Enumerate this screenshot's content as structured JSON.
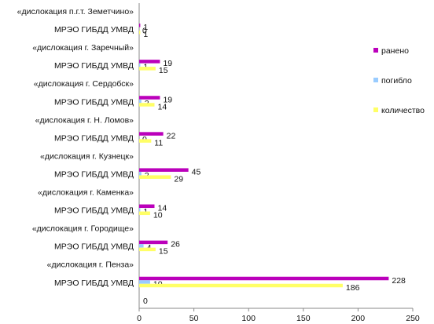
{
  "chart_data": {
    "type": "bar",
    "orientation": "horizontal",
    "categories": [
      "«дислокация п.г.т. Земетчино»",
      "МРЭО ГИБДД УМВД",
      "«дислокация г. Заречный»",
      "МРЭО ГИБДД УМВД",
      "«дислокация г. Сердобск»",
      "МРЭО ГИБДД УМВД",
      "«дислокация г. Н. Ломов»",
      "МРЭО ГИБДД УМВД",
      "«дислокация г. Кузнецк»",
      "МРЭО ГИБДД УМВД",
      "«дислокация г. Каменка»",
      "МРЭО ГИБДД УМВД",
      "«дислокация г. Городище»",
      "МРЭО ГИБДД УМВД",
      "«дислокация г. Пенза»",
      "МРЭО ГИБДД УМВД"
    ],
    "groups": [
      {
        "label_index": 1,
        "values": {
          "ранено": 1,
          "погибло": null,
          "количество": 1
        },
        "labels": {
          "ранено": "1",
          "погибло": "0",
          "количество": "1"
        }
      },
      {
        "label_index": 3,
        "values": {
          "ранено": 19,
          "погибло": 1,
          "количество": 15
        },
        "labels": {
          "ранено": "19",
          "погибло": "1",
          "количество": "15"
        }
      },
      {
        "label_index": 5,
        "values": {
          "ранено": 19,
          "погибло": 2,
          "количество": 14
        },
        "labels": {
          "ранено": "19",
          "погибло": "2",
          "количество": "14"
        }
      },
      {
        "label_index": 7,
        "values": {
          "ранено": 22,
          "погибло": 0,
          "количество": 11
        },
        "labels": {
          "ранено": "22",
          "погибло": "0",
          "количество": "11"
        }
      },
      {
        "label_index": 9,
        "values": {
          "ранено": 45,
          "погибло": 2,
          "количество": 29
        },
        "labels": {
          "ранено": "45",
          "погибло": "2",
          "количество": "29"
        }
      },
      {
        "label_index": 11,
        "values": {
          "ранено": 14,
          "погибло": 1,
          "количество": 10
        },
        "labels": {
          "ранено": "14",
          "погибло": "1",
          "количество": "10"
        }
      },
      {
        "label_index": 13,
        "values": {
          "ранено": 26,
          "погибло": 4,
          "количество": 15
        },
        "labels": {
          "ранено": "26",
          "погибло": "4",
          "количество": "15"
        }
      },
      {
        "label_index": 15,
        "values": {
          "ранено": 228,
          "погибло": 10,
          "количество": 186
        },
        "labels": {
          "ранено": "228",
          "погибло": "10",
          "количество": "186"
        }
      }
    ],
    "extra_label": "0",
    "series": [
      {
        "name": "ранено",
        "color": "#bb00bb"
      },
      {
        "name": "погибло",
        "color": "#99ccff"
      },
      {
        "name": "количество",
        "color": "#ffff66"
      }
    ],
    "xlim": [
      0,
      250
    ],
    "xticks": [
      "0",
      "50",
      "100",
      "150",
      "200",
      "250"
    ],
    "xtick_values": [
      0,
      50,
      100,
      150,
      200,
      250
    ],
    "legend_position": "right",
    "grid": false
  }
}
